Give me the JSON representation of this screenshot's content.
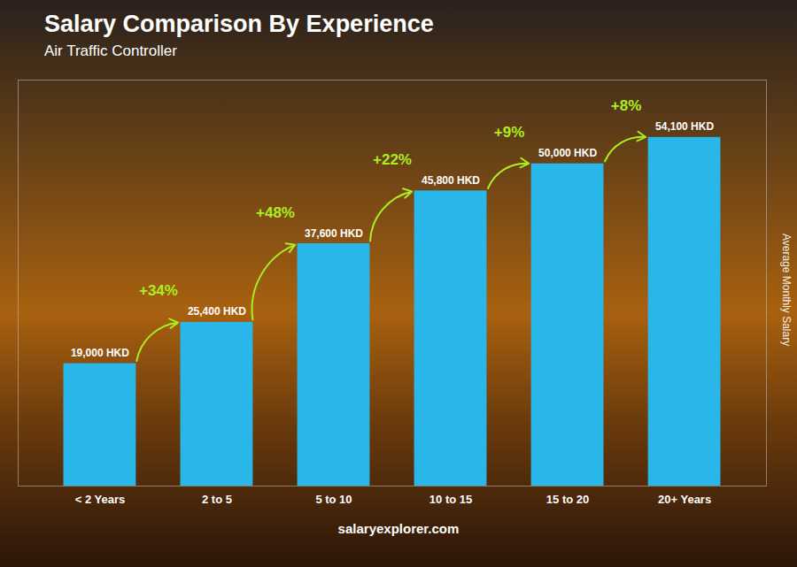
{
  "chart_data": {
    "type": "bar",
    "title": "Salary Comparison By Experience",
    "subtitle": "Air Traffic Controller",
    "ylabel": "Average Monthly Salary",
    "caption": "salaryexplorer.com",
    "categories": [
      "< 2 Years",
      "2 to 5",
      "5 to 10",
      "10 to 15",
      "15 to 20",
      "20+ Years"
    ],
    "values": [
      19000,
      25400,
      37600,
      45800,
      50000,
      54100
    ],
    "value_labels": [
      "19,000 HKD",
      "25,400 HKD",
      "37,600 HKD",
      "45,800 HKD",
      "50,000 HKD",
      "54,100 HKD"
    ],
    "data_labels": true,
    "color": "#29b6e8",
    "ylim": [
      0,
      63000
    ],
    "yticks": [],
    "tick_labels": "x",
    "annotations": [
      {
        "text": "+34%",
        "from": "< 2 Years",
        "to": "2 to 5",
        "color": "#aaee22"
      },
      {
        "text": "+48%",
        "from": "2 to 5",
        "to": "5 to 10",
        "color": "#aaee22"
      },
      {
        "text": "+22%",
        "from": "5 to 10",
        "to": "10 to 15",
        "color": "#aaee22"
      },
      {
        "text": "+9%",
        "from": "10 to 15",
        "to": "15 to 20",
        "color": "#aaee22"
      },
      {
        "text": "+8%",
        "from": "15 to 20",
        "to": "20+ Years",
        "color": "#aaee22"
      }
    ]
  }
}
